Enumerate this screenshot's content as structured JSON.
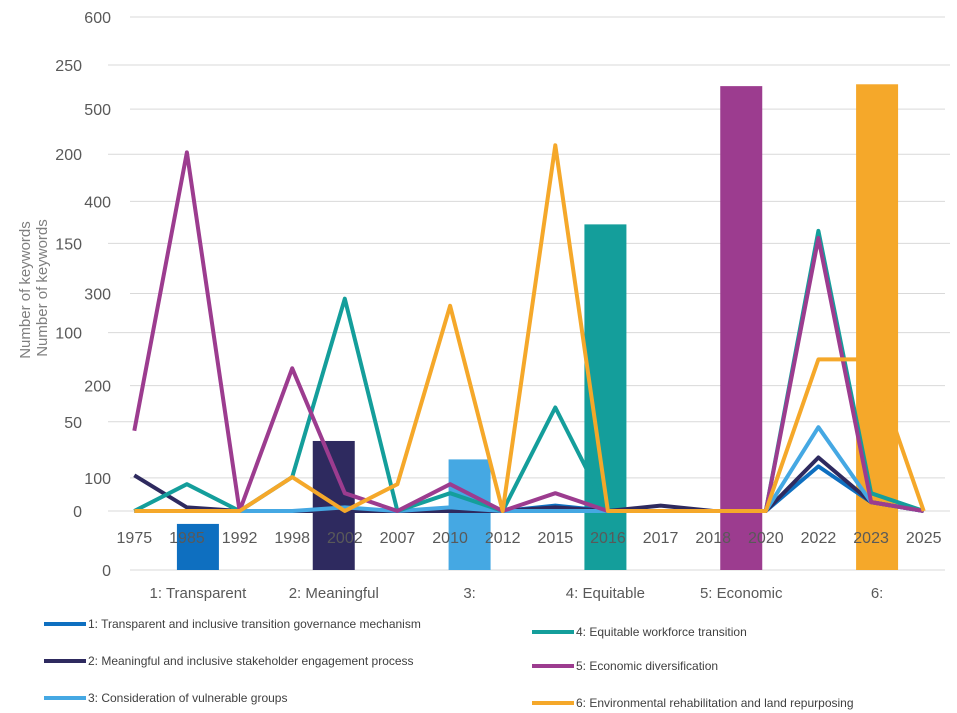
{
  "chart_data": [
    {
      "type": "bar",
      "ylabel": "Number of keywords",
      "ylim": [
        0,
        600
      ],
      "yticks": [
        0,
        100,
        200,
        300,
        400,
        500,
        600
      ],
      "categories": [
        "1: Transparent and inclusive transition mechanism",
        "2: Meaningful and inclusive stakeholder engagement process",
        "3: Consideration of vulnerable groups",
        "4: Equitable workforce transition",
        "5: Economic diversification",
        "6: Environmental rehabilitation and land repurposing"
      ],
      "values": [
        50,
        140,
        120,
        375,
        525,
        527
      ],
      "colors": [
        "#0e6fc0",
        "#2e2a5f",
        "#45a8e3",
        "#149e9b",
        "#9c3c8f",
        "#f5a82a"
      ]
    },
    {
      "type": "line",
      "ylabel": "Number of keywords",
      "ylim": [
        0,
        250
      ],
      "yticks": [
        0,
        50,
        100,
        150,
        200,
        250
      ],
      "x": [
        "1975",
        "1985",
        "1992",
        "1998",
        "2002",
        "2007",
        "2010",
        "2012",
        "2015",
        "2016",
        "2017",
        "2018",
        "2020",
        "2022",
        "2023",
        "2025"
      ],
      "series": [
        {
          "name": "1: Transparent and inclusive transition governance mechanism",
          "color": "#0e6fc0",
          "values": [
            0,
            0,
            0,
            0,
            0,
            0,
            0,
            0,
            3,
            0,
            0,
            0,
            0,
            25,
            5,
            0
          ]
        },
        {
          "name": "2: Meaningful and inclusive stakeholder engagement process",
          "color": "#2e2a5f",
          "values": [
            20,
            2,
            0,
            0,
            0,
            0,
            0,
            0,
            2,
            0,
            3,
            0,
            0,
            30,
            5,
            0
          ]
        },
        {
          "name": "3: Consideration of vulnerable groups",
          "color": "#45a8e3",
          "values": [
            0,
            0,
            0,
            0,
            2,
            0,
            2,
            0,
            0,
            0,
            0,
            0,
            0,
            47,
            5,
            0
          ]
        },
        {
          "name": "4: Equitable workforce transition",
          "color": "#149e9b",
          "values": [
            0,
            15,
            0,
            19,
            119,
            0,
            10,
            0,
            58,
            0,
            0,
            0,
            0,
            157,
            10,
            0
          ]
        },
        {
          "name": "5: Economic diversification",
          "color": "#9c3c8f",
          "values": [
            45,
            201,
            0,
            80,
            10,
            0,
            15,
            0,
            10,
            0,
            0,
            0,
            0,
            153,
            5,
            0
          ]
        },
        {
          "name": "6: Environmental rehabilitation and land repurposing",
          "color": "#f5a82a",
          "values": [
            0,
            0,
            0,
            19,
            0,
            15,
            115,
            0,
            205,
            0,
            0,
            0,
            0,
            85,
            85,
            0
          ]
        }
      ],
      "legend": "bottom"
    }
  ]
}
